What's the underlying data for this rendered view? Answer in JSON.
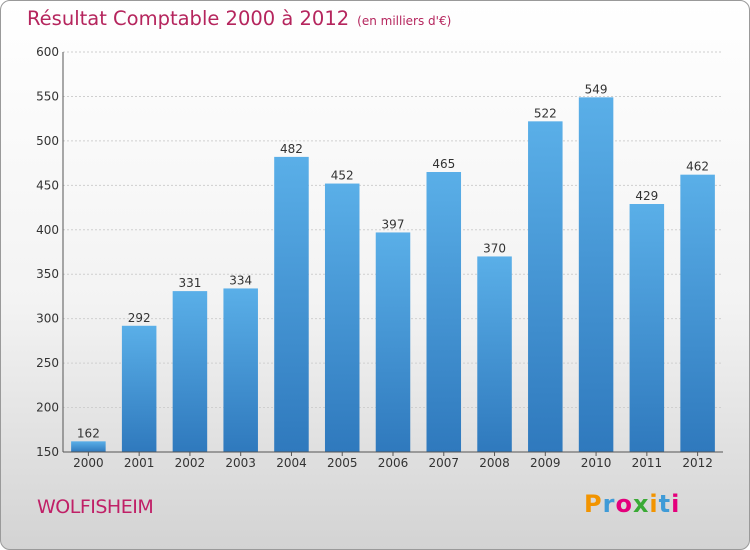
{
  "title": "Résultat Comptable 2000 à 2012",
  "subtitle": "(en milliers d'€)",
  "city": "WOLFISHEIM",
  "logo": {
    "text": "Proxiti",
    "colors": [
      "#f29400",
      "#3f9bd7",
      "#e4007c",
      "#3aaa35",
      "#f29400",
      "#3f9bd7",
      "#e4007c"
    ]
  },
  "colors": {
    "bar_top": "#5aafe8",
    "bar_bottom": "#2f79bd",
    "title": "#b5255d",
    "city": "#c02067"
  },
  "chart_data": {
    "type": "bar",
    "categories": [
      "2000",
      "2001",
      "2002",
      "2003",
      "2004",
      "2005",
      "2006",
      "2007",
      "2008",
      "2009",
      "2010",
      "2011",
      "2012"
    ],
    "values": [
      162,
      292,
      331,
      334,
      482,
      452,
      397,
      465,
      370,
      522,
      549,
      429,
      462
    ],
    "ylim": [
      150,
      600
    ],
    "yticks": [
      150,
      200,
      250,
      300,
      350,
      400,
      450,
      500,
      550,
      600
    ],
    "grid": true
  }
}
